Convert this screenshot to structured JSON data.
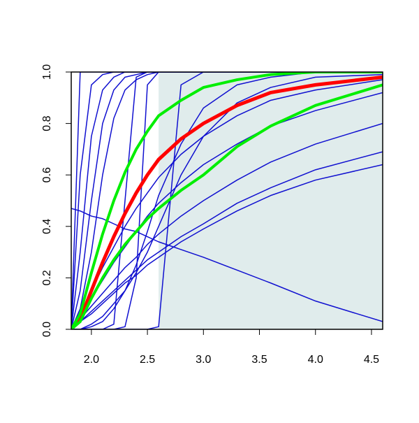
{
  "chart_data": {
    "type": "line",
    "xlim": [
      1.82,
      4.6
    ],
    "ylim": [
      0,
      1
    ],
    "xticks": [
      {
        "value": 2.0,
        "label": "2.0"
      },
      {
        "value": 2.5,
        "label": "2.5"
      },
      {
        "value": 3.0,
        "label": "3.0"
      },
      {
        "value": 3.5,
        "label": "3.5"
      },
      {
        "value": 4.0,
        "label": "4.0"
      },
      {
        "value": 4.5,
        "label": "4.5"
      }
    ],
    "yticks": [
      {
        "value": 0,
        "label": "0.0"
      },
      {
        "value": 0.2,
        "label": "0.2"
      },
      {
        "value": 0.4,
        "label": "0.4"
      },
      {
        "value": 0.6,
        "label": "0.6"
      },
      {
        "value": 0.8,
        "label": "0.8"
      },
      {
        "value": 1.0,
        "label": "1.0"
      }
    ],
    "shaded_region": {
      "x": [
        2.6,
        4.6
      ],
      "color": "#e0ecec"
    },
    "x": [
      1.82,
      1.9,
      2.0,
      2.1,
      2.2,
      2.3,
      2.4,
      2.5,
      2.6,
      2.8,
      3.0,
      3.3,
      3.6,
      4.0,
      4.6
    ],
    "series": [
      {
        "color": "#1010d0",
        "width": 1.5,
        "values": [
          0,
          1,
          1,
          1,
          1,
          1,
          1,
          1,
          1,
          1,
          1,
          1,
          1,
          1,
          1
        ]
      },
      {
        "color": "#1010d0",
        "width": 1.5,
        "values": [
          0,
          0.6,
          0.95,
          0.99,
          1,
          1,
          1,
          1,
          1,
          1,
          1,
          1,
          1,
          1,
          1
        ]
      },
      {
        "color": "#1010d0",
        "width": 1.5,
        "values": [
          0,
          0.3,
          0.75,
          0.93,
          0.98,
          1,
          1,
          1,
          1,
          1,
          1,
          1,
          1,
          1,
          1
        ]
      },
      {
        "color": "#1010d0",
        "width": 1.5,
        "values": [
          0,
          0.15,
          0.5,
          0.8,
          0.93,
          0.98,
          0.99,
          1,
          1,
          1,
          1,
          1,
          1,
          1,
          1
        ]
      },
      {
        "color": "#1010d0",
        "width": 1.5,
        "values": [
          0,
          0.08,
          0.3,
          0.6,
          0.82,
          0.93,
          0.97,
          0.99,
          1,
          1,
          1,
          1,
          1,
          1,
          1
        ]
      },
      {
        "color": "#1010d0",
        "width": 1.5,
        "values": [
          0,
          0,
          0,
          0,
          0.02,
          0.5,
          0.98,
          1,
          1,
          1,
          1,
          1,
          1,
          1,
          1
        ]
      },
      {
        "color": "#1010d0",
        "width": 1.5,
        "values": [
          0,
          0,
          0,
          0,
          0,
          0.01,
          0.2,
          0.95,
          1,
          1,
          1,
          1,
          1,
          1,
          1
        ]
      },
      {
        "color": "#1010d0",
        "width": 1.5,
        "values": [
          0,
          0,
          0,
          0,
          0,
          0,
          0,
          0,
          0.01,
          0.95,
          1,
          1,
          1,
          1,
          1
        ]
      },
      {
        "color": "#1010d0",
        "width": 1.5,
        "values": [
          0,
          0,
          0.01,
          0.03,
          0.08,
          0.15,
          0.25,
          0.38,
          0.52,
          0.72,
          0.86,
          0.95,
          0.98,
          1,
          1
        ]
      },
      {
        "color": "#1010d0",
        "width": 1.5,
        "values": [
          0,
          0,
          0.02,
          0.05,
          0.1,
          0.15,
          0.22,
          0.3,
          0.4,
          0.6,
          0.75,
          0.88,
          0.94,
          0.98,
          0.99
        ]
      },
      {
        "color": "#1010d0",
        "width": 1.5,
        "values": [
          0,
          0.03,
          0.07,
          0.11,
          0.15,
          0.19,
          0.23,
          0.27,
          0.3,
          0.36,
          0.41,
          0.49,
          0.55,
          0.62,
          0.69
        ]
      },
      {
        "color": "#1010d0",
        "width": 1.5,
        "values": [
          0,
          0.03,
          0.06,
          0.1,
          0.14,
          0.18,
          0.21,
          0.25,
          0.28,
          0.34,
          0.39,
          0.46,
          0.52,
          0.58,
          0.64
        ]
      },
      {
        "color": "#1010d0",
        "width": 1.5,
        "values": [
          0,
          0.04,
          0.09,
          0.14,
          0.19,
          0.24,
          0.28,
          0.33,
          0.37,
          0.44,
          0.5,
          0.58,
          0.65,
          0.72,
          0.8
        ]
      },
      {
        "color": "#1010d0",
        "width": 1.5,
        "values": [
          0,
          0.05,
          0.12,
          0.19,
          0.26,
          0.32,
          0.38,
          0.44,
          0.49,
          0.57,
          0.64,
          0.72,
          0.79,
          0.85,
          0.92
        ]
      },
      {
        "color": "#1010d0",
        "width": 1.5,
        "values": [
          0,
          0.06,
          0.15,
          0.24,
          0.32,
          0.4,
          0.47,
          0.53,
          0.59,
          0.68,
          0.75,
          0.83,
          0.89,
          0.93,
          0.97
        ]
      },
      {
        "color": "#1010d0",
        "width": 1.5,
        "values": [
          0.47,
          0.46,
          0.44,
          0.43,
          0.41,
          0.39,
          0.38,
          0.36,
          0.34,
          0.31,
          0.28,
          0.23,
          0.18,
          0.11,
          0.03
        ]
      },
      {
        "color": "#ff0000",
        "width": 5,
        "values": [
          0,
          0.04,
          0.15,
          0.26,
          0.36,
          0.45,
          0.53,
          0.6,
          0.66,
          0.74,
          0.8,
          0.87,
          0.92,
          0.95,
          0.98
        ]
      },
      {
        "color": "#00ee00",
        "width": 4,
        "values": [
          0,
          0.06,
          0.22,
          0.37,
          0.5,
          0.61,
          0.7,
          0.77,
          0.83,
          0.89,
          0.94,
          0.97,
          0.99,
          1,
          1
        ]
      },
      {
        "color": "#00ee00",
        "width": 4,
        "values": [
          0,
          0.03,
          0.12,
          0.2,
          0.27,
          0.33,
          0.38,
          0.43,
          0.47,
          0.54,
          0.6,
          0.71,
          0.79,
          0.87,
          0.95
        ]
      }
    ]
  }
}
